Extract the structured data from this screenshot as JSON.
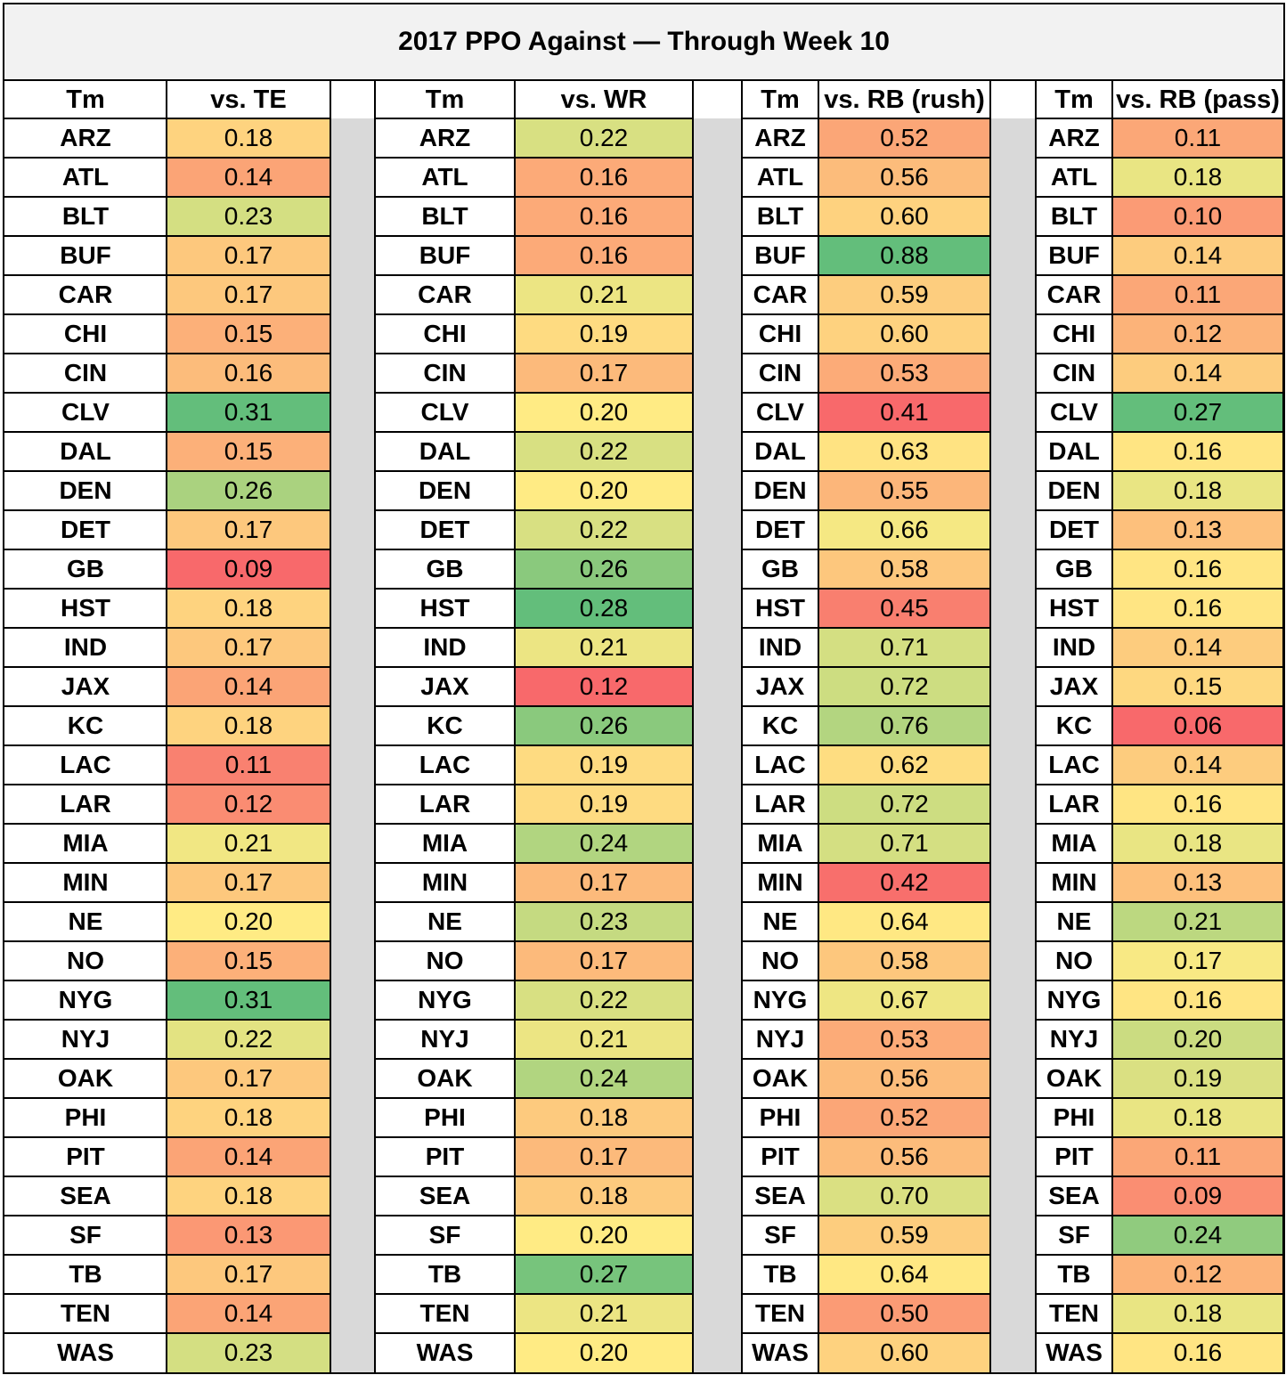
{
  "chart_data": {
    "type": "table",
    "title": "2017 PPO Against — Through Week 10",
    "groups": [
      {
        "team_header": "Tm",
        "value_header": "vs. TE"
      },
      {
        "team_header": "Tm",
        "value_header": "vs. WR"
      },
      {
        "team_header": "Tm",
        "value_header": "vs. RB (rush)"
      },
      {
        "team_header": "Tm",
        "value_header": "vs. RB (pass)"
      }
    ],
    "teams": [
      "ARZ",
      "ATL",
      "BLT",
      "BUF",
      "CAR",
      "CHI",
      "CIN",
      "CLV",
      "DAL",
      "DEN",
      "DET",
      "GB",
      "HST",
      "IND",
      "JAX",
      "KC",
      "LAC",
      "LAR",
      "MIA",
      "MIN",
      "NE",
      "NO",
      "NYG",
      "NYJ",
      "OAK",
      "PHI",
      "PIT",
      "SEA",
      "SF",
      "TB",
      "TEN",
      "WAS"
    ],
    "values": [
      [
        "0.18",
        "0.14",
        "0.23",
        "0.17",
        "0.17",
        "0.15",
        "0.16",
        "0.31",
        "0.15",
        "0.26",
        "0.17",
        "0.09",
        "0.18",
        "0.17",
        "0.14",
        "0.18",
        "0.11",
        "0.12",
        "0.21",
        "0.17",
        "0.20",
        "0.15",
        "0.31",
        "0.22",
        "0.17",
        "0.18",
        "0.14",
        "0.18",
        "0.13",
        "0.17",
        "0.14",
        "0.23"
      ],
      [
        "0.22",
        "0.16",
        "0.16",
        "0.16",
        "0.21",
        "0.19",
        "0.17",
        "0.20",
        "0.22",
        "0.20",
        "0.22",
        "0.26",
        "0.28",
        "0.21",
        "0.12",
        "0.26",
        "0.19",
        "0.19",
        "0.24",
        "0.17",
        "0.23",
        "0.17",
        "0.22",
        "0.21",
        "0.24",
        "0.18",
        "0.17",
        "0.18",
        "0.20",
        "0.27",
        "0.21",
        "0.20"
      ],
      [
        "0.52",
        "0.56",
        "0.60",
        "0.88",
        "0.59",
        "0.60",
        "0.53",
        "0.41",
        "0.63",
        "0.55",
        "0.66",
        "0.58",
        "0.45",
        "0.71",
        "0.72",
        "0.76",
        "0.62",
        "0.72",
        "0.71",
        "0.42",
        "0.64",
        "0.58",
        "0.67",
        "0.53",
        "0.56",
        "0.52",
        "0.56",
        "0.70",
        "0.59",
        "0.64",
        "0.50",
        "0.60"
      ],
      [
        "0.11",
        "0.18",
        "0.10",
        "0.14",
        "0.11",
        "0.12",
        "0.14",
        "0.27",
        "0.16",
        "0.18",
        "0.13",
        "0.16",
        "0.16",
        "0.14",
        "0.15",
        "0.06",
        "0.14",
        "0.16",
        "0.18",
        "0.13",
        "0.21",
        "0.17",
        "0.16",
        "0.20",
        "0.19",
        "0.18",
        "0.11",
        "0.09",
        "0.24",
        "0.12",
        "0.18",
        "0.16"
      ]
    ],
    "color_scale": {
      "low": "#f8696b",
      "mid": "#ffeb84",
      "high": "#63be7b"
    }
  }
}
